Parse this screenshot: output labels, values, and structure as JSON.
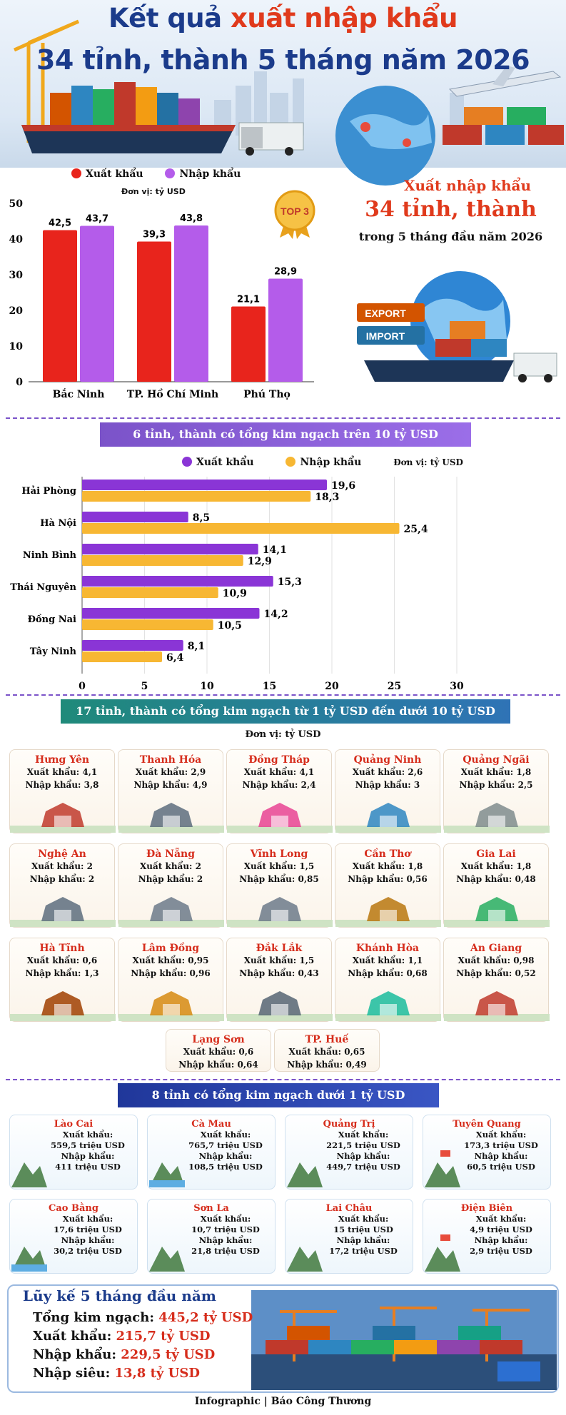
{
  "header": {
    "title_part1": "Kết quả ",
    "title_highlight": "xuất nhập khẩu",
    "title_line2": "34 tỉnh, thành 5 tháng năm 2026"
  },
  "legend": {
    "export": "Xuất khẩu",
    "import": "Nhập khẩu",
    "unit": "Đơn vị: tỷ USD"
  },
  "colors": {
    "export_top": "#e8241c",
    "import_top": "#b45cea",
    "export_h": "#8a35d6",
    "import_h": "#f7b733",
    "title": "#1b3b8b",
    "accent": "#e03a1c"
  },
  "badge": "TOP 3",
  "summary": {
    "line1": "Xuất nhập khẩu",
    "line2": "34 tỉnh, thành",
    "line3": "trong 5 tháng đầu năm 2026",
    "export_sign": "EXPORT",
    "import_sign": "IMPORT"
  },
  "chart_data": [
    {
      "type": "bar",
      "categories": [
        "Bắc Ninh",
        "TP. Hồ Chí Minh",
        "Phú Thọ"
      ],
      "series": [
        {
          "name": "Xuất khẩu",
          "values": [
            42.5,
            39.3,
            21.1
          ],
          "labels": [
            "42,5",
            "39,3",
            "21,1"
          ]
        },
        {
          "name": "Nhập khẩu",
          "values": [
            43.7,
            43.8,
            28.9
          ],
          "labels": [
            "43,7",
            "43,8",
            "28,9"
          ]
        }
      ],
      "ylim": [
        0,
        50
      ],
      "yticks": [
        "0",
        "10",
        "20",
        "30",
        "40",
        "50"
      ],
      "ylabel": "Đơn vị: tỷ USD"
    },
    {
      "type": "bar",
      "orientation": "horizontal",
      "title": "6 tỉnh, thành có tổng kim ngạch trên 10 tỷ USD",
      "categories": [
        "Hải Phòng",
        "Hà Nội",
        "Ninh Bình",
        "Thái Nguyên",
        "Đồng Nai",
        "Tây Ninh"
      ],
      "series": [
        {
          "name": "Xuất khẩu",
          "values": [
            19.6,
            8.5,
            14.1,
            15.3,
            14.2,
            8.1
          ],
          "labels": [
            "19,6",
            "8,5",
            "14,1",
            "15,3",
            "14,2",
            "8,1"
          ]
        },
        {
          "name": "Nhập khẩu",
          "values": [
            18.3,
            25.4,
            12.9,
            10.9,
            10.5,
            6.4
          ],
          "labels": [
            "18,3",
            "25,4",
            "12,9",
            "10,9",
            "10,5",
            "6,4"
          ]
        }
      ],
      "xlim": [
        0,
        30
      ],
      "xticks": [
        "0",
        "5",
        "10",
        "15",
        "20",
        "25",
        "30"
      ],
      "unit": "Đơn vị: tỷ USD"
    }
  ],
  "section3": {
    "title": "17 tỉnh, thành có tổng kim ngạch từ 1 tỷ USD đến dưới 10 tỷ USD",
    "unit": "Đơn vị: tỷ USD",
    "export_prefix": "Xuất khẩu: ",
    "import_prefix": "Nhập khẩu: ",
    "provinces": [
      {
        "name": "Hưng Yên",
        "export": "4,1",
        "import": "3,8",
        "icon": "pagoda-icon"
      },
      {
        "name": "Thanh Hóa",
        "export": "2,9",
        "import": "4,9",
        "icon": "statue-icon"
      },
      {
        "name": "Đồng Tháp",
        "export": "4,1",
        "import": "2,4",
        "icon": "lotus-icon"
      },
      {
        "name": "Quảng Ninh",
        "export": "2,6",
        "import": "3",
        "icon": "bay-icon"
      },
      {
        "name": "Quảng Ngãi",
        "export": "1,8",
        "import": "2,5",
        "icon": "tower-icon"
      },
      {
        "name": "Nghệ An",
        "export": "2",
        "import": "2",
        "icon": "statue-icon"
      },
      {
        "name": "Đà Nẵng",
        "export": "2",
        "import": "2",
        "icon": "bridge-icon"
      },
      {
        "name": "Vĩnh Long",
        "export": "1,5",
        "import": "0,85",
        "icon": "bridge-icon"
      },
      {
        "name": "Cần Thơ",
        "export": "1,8",
        "import": "0,56",
        "icon": "market-icon"
      },
      {
        "name": "Gia Lai",
        "export": "1,8",
        "import": "0,48",
        "icon": "hill-icon"
      },
      {
        "name": "Hà Tĩnh",
        "export": "0,6",
        "import": "1,3",
        "icon": "gate-icon"
      },
      {
        "name": "Lâm Đồng",
        "export": "0,95",
        "import": "0,96",
        "icon": "church-icon"
      },
      {
        "name": "Đắk Lắk",
        "export": "1,5",
        "import": "0,43",
        "icon": "elephant-icon"
      },
      {
        "name": "Khánh Hòa",
        "export": "1,1",
        "import": "0,68",
        "icon": "beach-icon"
      },
      {
        "name": "An Giang",
        "export": "0,98",
        "import": "0,52",
        "icon": "pagoda-icon"
      },
      {
        "name": "Lạng Sơn",
        "export": "0,6",
        "import": "0,64",
        "icon": "none"
      },
      {
        "name": "TP. Huế",
        "export": "0,65",
        "import": "0,49",
        "icon": "none"
      }
    ]
  },
  "section4": {
    "title": "8 tỉnh có tổng kim ngạch dưới 1 tỷ USD",
    "export_label": "Xuất khẩu:",
    "import_label": "Nhập khẩu:",
    "provinces": [
      {
        "name": "Lào Cai",
        "export": "559,5 triệu USD",
        "import": "411 triệu USD",
        "icon": "mountain-icon"
      },
      {
        "name": "Cà Mau",
        "export": "765,7 triệu USD",
        "import": "108,5 triệu USD",
        "icon": "boat-icon"
      },
      {
        "name": "Quảng Trị",
        "export": "221,5 triệu USD",
        "import": "449,7 triệu USD",
        "icon": "church-icon"
      },
      {
        "name": "Tuyên Quang",
        "export": "173,3 triệu USD",
        "import": "60,5 triệu USD",
        "icon": "flag-tower-icon"
      },
      {
        "name": "Cao Bằng",
        "export": "17,6 triệu USD",
        "import": "30,2 triệu USD",
        "icon": "waterfall-icon"
      },
      {
        "name": "Sơn La",
        "export": "10,7 triệu USD",
        "import": "21,8 triệu USD",
        "icon": "tea-hill-icon"
      },
      {
        "name": "Lai Châu",
        "export": "15 triệu USD",
        "import": "17,2 triệu USD",
        "icon": "mountain-icon"
      },
      {
        "name": "Điện Biên",
        "export": "4,9 triệu USD",
        "import": "2,9 triệu USD",
        "icon": "flag-hill-icon"
      }
    ]
  },
  "cumulative": {
    "title": "Lũy kế 5 tháng đầu năm",
    "total_label": "Tổng kim ngạch: ",
    "total": "445,2 tỷ USD",
    "export_label": "Xuất khẩu: ",
    "export": "215,7 tỷ USD",
    "import_label": "Nhập khẩu: ",
    "import": "229,5 tỷ USD",
    "deficit_label": "Nhập siêu: ",
    "deficit": "13,8 tỷ USD"
  },
  "footer": "Infographic | Báo Công Thương"
}
